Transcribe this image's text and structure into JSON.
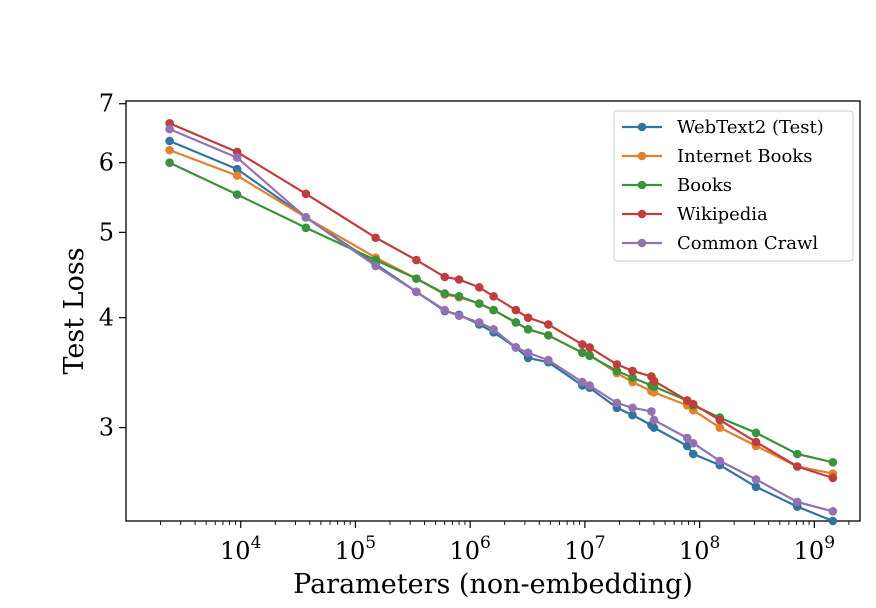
{
  "chart_data": {
    "type": "line",
    "title": "",
    "xlabel": "Parameters (non-embedding)",
    "ylabel": "Test Loss",
    "xscale": "log",
    "yscale": "log",
    "xlim": [
      1000,
      2500000000
    ],
    "ylim": [
      2.35,
      7.05
    ],
    "x_ticks": [
      {
        "value": 10000,
        "base": "10",
        "exp": "4"
      },
      {
        "value": 100000,
        "base": "10",
        "exp": "5"
      },
      {
        "value": 1000000,
        "base": "10",
        "exp": "6"
      },
      {
        "value": 10000000,
        "base": "10",
        "exp": "7"
      },
      {
        "value": 100000000,
        "base": "10",
        "exp": "8"
      },
      {
        "value": 1000000000,
        "base": "10",
        "exp": "9"
      }
    ],
    "y_ticks": [
      {
        "value": 3,
        "label": "3"
      },
      {
        "value": 4,
        "label": "4"
      },
      {
        "value": 5,
        "label": "5"
      },
      {
        "value": 6,
        "label": "6"
      },
      {
        "value": 7,
        "label": "7"
      }
    ],
    "legend_position": "top-right",
    "grid": false,
    "x": [
      2400,
      9300,
      37000,
      150000,
      340000,
      600000,
      800000,
      1200000,
      1600000,
      2500000,
      3200000,
      4800000,
      9500000,
      11000000,
      19000000,
      26000000,
      38000000,
      40000000,
      78000000,
      88000000,
      150000000,
      310000000,
      710000000,
      1450000000
    ],
    "series": [
      {
        "name": "WebText2 (Test)",
        "color": "#3274a1",
        "values": [
          6.35,
          5.9,
          5.2,
          4.6,
          4.28,
          4.07,
          4.03,
          3.93,
          3.85,
          3.7,
          3.6,
          3.56,
          3.35,
          3.33,
          3.16,
          3.1,
          3.02,
          3.0,
          2.86,
          2.8,
          2.72,
          2.57,
          2.44,
          2.35
        ]
      },
      {
        "name": "Internet Books",
        "color": "#e1812c",
        "values": [
          6.2,
          5.8,
          5.2,
          4.68,
          4.43,
          4.25,
          4.22,
          4.15,
          4.08,
          3.95,
          3.88,
          3.82,
          3.65,
          3.63,
          3.46,
          3.38,
          3.3,
          3.29,
          3.18,
          3.14,
          3.0,
          2.86,
          2.71,
          2.66
        ]
      },
      {
        "name": "Books",
        "color": "#3a923a",
        "values": [
          6.0,
          5.52,
          5.06,
          4.65,
          4.43,
          4.26,
          4.23,
          4.15,
          4.08,
          3.95,
          3.88,
          3.82,
          3.65,
          3.62,
          3.48,
          3.42,
          3.35,
          3.34,
          3.22,
          3.18,
          3.08,
          2.96,
          2.8,
          2.74
        ]
      },
      {
        "name": "Wikipedia",
        "color": "#c03d3e",
        "values": [
          6.65,
          6.17,
          5.53,
          4.93,
          4.65,
          4.45,
          4.42,
          4.33,
          4.23,
          4.08,
          4.0,
          3.93,
          3.73,
          3.7,
          3.54,
          3.48,
          3.43,
          3.39,
          3.22,
          3.19,
          3.06,
          2.89,
          2.71,
          2.63
        ]
      },
      {
        "name": "Common Crawl",
        "color": "#9372b2",
        "values": [
          6.55,
          6.08,
          5.2,
          4.58,
          4.28,
          4.08,
          4.02,
          3.95,
          3.88,
          3.7,
          3.65,
          3.58,
          3.38,
          3.35,
          3.2,
          3.16,
          3.13,
          3.06,
          2.92,
          2.88,
          2.75,
          2.62,
          2.47,
          2.41
        ]
      }
    ]
  }
}
